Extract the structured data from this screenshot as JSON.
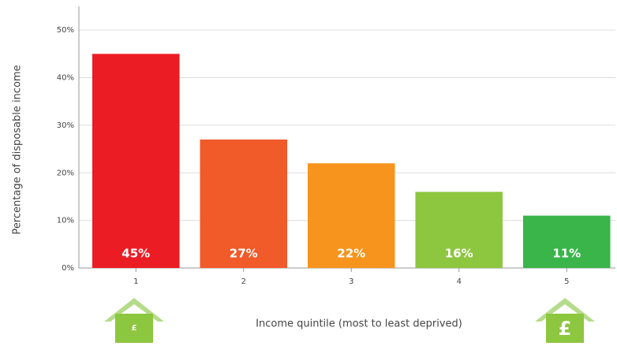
{
  "chart_data": {
    "type": "bar",
    "y_label": "Percentage of disposable income",
    "x_label": "Income quintile (most to least deprived)",
    "categories": [
      "1",
      "2",
      "3",
      "4",
      "5"
    ],
    "values": [
      45,
      27,
      22,
      16,
      11
    ],
    "value_labels": [
      "45%",
      "27%",
      "22%",
      "16%",
      "11%"
    ],
    "colors": [
      "#ec1c24",
      "#f15a29",
      "#f7941d",
      "#8dc63f",
      "#39b54a"
    ],
    "ylim": [
      0,
      55
    ],
    "yticks": [
      {
        "value": 0,
        "label": "0%"
      },
      {
        "value": 10,
        "label": "10%"
      },
      {
        "value": 20,
        "label": "20%"
      },
      {
        "value": 30,
        "label": "30%"
      },
      {
        "value": 40,
        "label": "40%"
      },
      {
        "value": 50,
        "label": "50%"
      }
    ],
    "grid": true,
    "icon_labels": [
      "£",
      "£"
    ]
  }
}
